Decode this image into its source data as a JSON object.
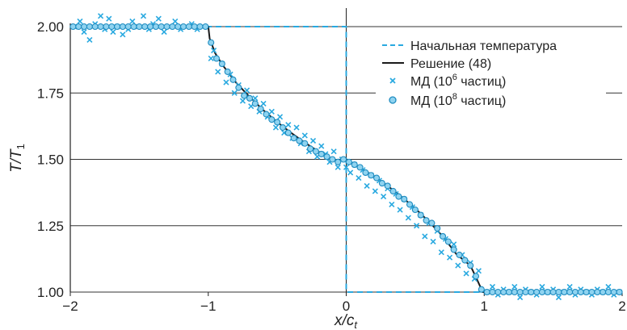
{
  "chart_data": {
    "type": "line",
    "xlabel": "x/c",
    "xlabel_sub": "t",
    "ylabel": "T/T",
    "ylabel_sub": "1",
    "xlim": [
      -2,
      2
    ],
    "ylim": [
      1.0,
      2.0
    ],
    "x_ticks": [
      -2,
      -1,
      0,
      1,
      2
    ],
    "x_tick_labels": [
      "−2",
      "−1",
      "0",
      "1",
      "2"
    ],
    "y_ticks": [
      1.0,
      1.25,
      1.5,
      1.75,
      2.0
    ],
    "y_tick_labels": [
      "1.00",
      "1.25",
      "1.50",
      "1.75",
      "2.00"
    ],
    "grid": "horizontal",
    "legend_position": "top-right",
    "colors": {
      "accent": "#29a9e0",
      "line": "#1a1a1a",
      "grid": "#333333"
    },
    "series": [
      {
        "name": "Начальная температура",
        "style": "dashed",
        "x": [
          -2,
          0,
          0,
          2
        ],
        "y": [
          2.0,
          2.0,
          1.0,
          1.0
        ]
      },
      {
        "name": "Решение (48)",
        "style": "solid",
        "x": [
          -2,
          -1,
          -0.99,
          -0.95,
          -0.9,
          -0.8,
          -0.7,
          -0.6,
          -0.5,
          -0.4,
          -0.3,
          -0.2,
          -0.1,
          0,
          0.1,
          0.2,
          0.3,
          0.4,
          0.5,
          0.6,
          0.7,
          0.8,
          0.9,
          0.95,
          0.99,
          1,
          2
        ],
        "y": [
          2.0,
          2.0,
          1.955,
          1.9,
          1.858,
          1.79,
          1.735,
          1.685,
          1.64,
          1.6,
          1.563,
          1.529,
          1.498,
          1.5,
          1.468,
          1.437,
          1.4,
          1.36,
          1.315,
          1.265,
          1.21,
          1.142,
          1.1,
          1.045,
          1.0,
          1.0,
          1.0
        ]
      },
      {
        "name": "МД (10",
        "name_sup": "6",
        "name_suffix": " частиц)",
        "style": "cross",
        "x": [
          -1.97,
          -1.93,
          -1.9,
          -1.86,
          -1.82,
          -1.78,
          -1.75,
          -1.72,
          -1.69,
          -1.66,
          -1.62,
          -1.58,
          -1.55,
          -1.51,
          -1.47,
          -1.43,
          -1.4,
          -1.36,
          -1.32,
          -1.28,
          -1.24,
          -1.2,
          -1.16,
          -1.12,
          -1.08,
          -1.04,
          -0.98,
          -0.96,
          -0.93,
          -0.9,
          -0.87,
          -0.84,
          -0.81,
          -0.78,
          -0.75,
          -0.72,
          -0.69,
          -0.66,
          -0.63,
          -0.6,
          -0.57,
          -0.54,
          -0.51,
          -0.48,
          -0.45,
          -0.42,
          -0.39,
          -0.36,
          -0.33,
          -0.3,
          -0.27,
          -0.24,
          -0.21,
          -0.18,
          -0.15,
          -0.12,
          -0.09,
          -0.06,
          -0.03,
          0.0,
          0.03,
          0.06,
          0.09,
          0.12,
          0.15,
          0.18,
          0.21,
          0.24,
          0.27,
          0.3,
          0.33,
          0.36,
          0.39,
          0.42,
          0.45,
          0.48,
          0.51,
          0.54,
          0.57,
          0.6,
          0.63,
          0.66,
          0.69,
          0.72,
          0.75,
          0.78,
          0.81,
          0.84,
          0.87,
          0.9,
          0.93,
          0.96,
          1.02,
          1.06,
          1.1,
          1.14,
          1.18,
          1.22,
          1.26,
          1.3,
          1.34,
          1.38,
          1.42,
          1.46,
          1.5,
          1.54,
          1.58,
          1.62,
          1.66,
          1.7,
          1.74,
          1.78,
          1.82,
          1.86,
          1.9,
          1.94,
          1.98
        ],
        "y": [
          2.0,
          2.02,
          1.98,
          1.95,
          2.01,
          2.04,
          1.99,
          2.03,
          1.98,
          2.0,
          1.97,
          1.99,
          2.02,
          2.0,
          2.04,
          1.99,
          2.01,
          2.03,
          1.98,
          2.0,
          2.02,
          1.99,
          2.0,
          2.01,
          1.99,
          2.0,
          1.88,
          1.91,
          1.83,
          1.86,
          1.79,
          1.82,
          1.75,
          1.78,
          1.72,
          1.76,
          1.7,
          1.73,
          1.68,
          1.71,
          1.66,
          1.68,
          1.62,
          1.66,
          1.6,
          1.63,
          1.58,
          1.62,
          1.56,
          1.59,
          1.53,
          1.57,
          1.51,
          1.55,
          1.52,
          1.49,
          1.53,
          1.47,
          1.5,
          1.47,
          1.45,
          1.48,
          1.43,
          1.46,
          1.4,
          1.44,
          1.38,
          1.42,
          1.36,
          1.39,
          1.33,
          1.37,
          1.31,
          1.35,
          1.28,
          1.32,
          1.25,
          1.29,
          1.21,
          1.26,
          1.19,
          1.23,
          1.15,
          1.2,
          1.13,
          1.18,
          1.1,
          1.14,
          1.07,
          1.11,
          1.05,
          1.08,
          1.0,
          1.02,
          0.99,
          1.01,
          1.0,
          1.02,
          0.98,
          1.01,
          1.0,
          0.99,
          1.02,
          1.0,
          1.01,
          0.98,
          1.0,
          1.02,
          0.99,
          1.01,
          1.0,
          0.99,
          1.01,
          1.0,
          1.02,
          0.99,
          1.0
        ]
      },
      {
        "name": "МД (10",
        "name_sup": "8",
        "name_suffix": " частиц)",
        "style": "circle",
        "x": [
          -1.98,
          -1.94,
          -1.9,
          -1.86,
          -1.82,
          -1.78,
          -1.74,
          -1.7,
          -1.66,
          -1.62,
          -1.58,
          -1.54,
          -1.5,
          -1.46,
          -1.42,
          -1.38,
          -1.34,
          -1.3,
          -1.26,
          -1.22,
          -1.18,
          -1.14,
          -1.1,
          -1.06,
          -1.02,
          -0.98,
          -0.94,
          -0.9,
          -0.86,
          -0.82,
          -0.78,
          -0.74,
          -0.7,
          -0.66,
          -0.62,
          -0.58,
          -0.54,
          -0.5,
          -0.46,
          -0.42,
          -0.38,
          -0.34,
          -0.3,
          -0.26,
          -0.22,
          -0.18,
          -0.14,
          -0.1,
          -0.06,
          -0.02,
          0.02,
          0.06,
          0.1,
          0.14,
          0.18,
          0.22,
          0.26,
          0.3,
          0.34,
          0.38,
          0.42,
          0.46,
          0.5,
          0.54,
          0.58,
          0.62,
          0.66,
          0.7,
          0.74,
          0.78,
          0.82,
          0.86,
          0.9,
          0.94,
          0.98,
          1.02,
          1.06,
          1.1,
          1.14,
          1.18,
          1.22,
          1.26,
          1.3,
          1.34,
          1.38,
          1.42,
          1.46,
          1.5,
          1.54,
          1.58,
          1.62,
          1.66,
          1.7,
          1.74,
          1.78,
          1.82,
          1.86,
          1.9,
          1.94,
          1.98
        ],
        "y": [
          2.0,
          2.0,
          2.0,
          2.0,
          2.0,
          2.0,
          2.0,
          2.0,
          2.0,
          2.0,
          2.0,
          2.0,
          2.0,
          2.0,
          2.0,
          2.0,
          2.0,
          2.0,
          2.0,
          2.0,
          2.0,
          2.0,
          2.0,
          2.0,
          2.0,
          1.94,
          1.88,
          1.86,
          1.83,
          1.8,
          1.77,
          1.74,
          1.73,
          1.71,
          1.69,
          1.67,
          1.65,
          1.64,
          1.62,
          1.6,
          1.58,
          1.57,
          1.56,
          1.54,
          1.53,
          1.52,
          1.51,
          1.5,
          1.49,
          1.5,
          1.49,
          1.48,
          1.47,
          1.45,
          1.44,
          1.43,
          1.41,
          1.4,
          1.38,
          1.36,
          1.35,
          1.33,
          1.31,
          1.29,
          1.27,
          1.26,
          1.24,
          1.21,
          1.19,
          1.16,
          1.14,
          1.12,
          1.1,
          1.06,
          1.01,
          1.0,
          1.0,
          1.0,
          1.0,
          1.0,
          1.0,
          1.0,
          1.0,
          1.0,
          1.0,
          1.0,
          1.0,
          1.0,
          1.0,
          1.0,
          1.0,
          1.0,
          1.0,
          1.0,
          1.0,
          1.0,
          1.0,
          1.0,
          1.0,
          1.0
        ]
      }
    ]
  }
}
